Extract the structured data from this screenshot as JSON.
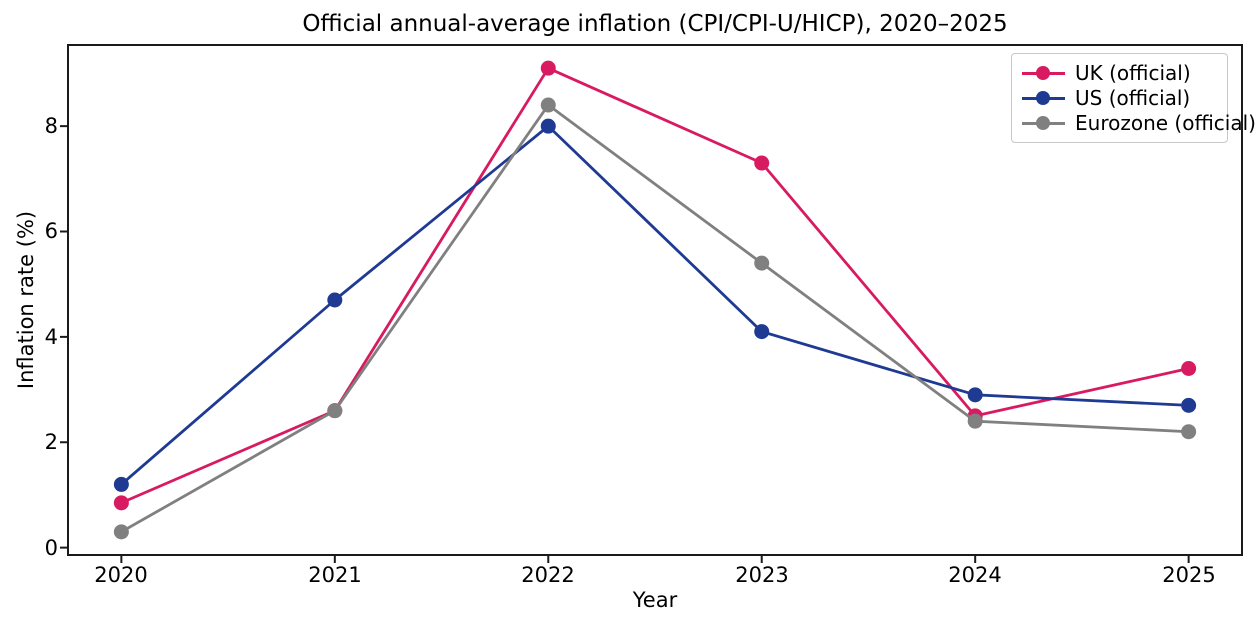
{
  "chart_data": {
    "type": "line",
    "title": "Official annual-average inflation (CPI/CPI-U/HICP), 2020–2025",
    "xlabel": "Year",
    "ylabel": "Inflation rate (%)",
    "x": [
      2020,
      2021,
      2022,
      2023,
      2024,
      2025
    ],
    "x_tick_labels": [
      "2020",
      "2021",
      "2022",
      "2023",
      "2024",
      "2025"
    ],
    "y_ticks": [
      0,
      2,
      4,
      6,
      8
    ],
    "y_tick_labels": [
      "0",
      "2",
      "4",
      "6",
      "8"
    ],
    "xlim": [
      2019.75,
      2025.25
    ],
    "ylim": [
      -0.14,
      9.54
    ],
    "grid": false,
    "legend_position": "upper right",
    "series": [
      {
        "name": "UK (official)",
        "color": "#d81b60",
        "values": [
          0.85,
          2.6,
          9.1,
          7.3,
          2.5,
          3.4
        ]
      },
      {
        "name": "US (official)",
        "color": "#1f3a93",
        "values": [
          1.2,
          4.7,
          8.0,
          4.1,
          2.9,
          2.7
        ]
      },
      {
        "name": "Eurozone (official)",
        "color": "#808080",
        "values": [
          0.3,
          2.6,
          8.4,
          5.4,
          2.4,
          2.2
        ]
      }
    ]
  }
}
